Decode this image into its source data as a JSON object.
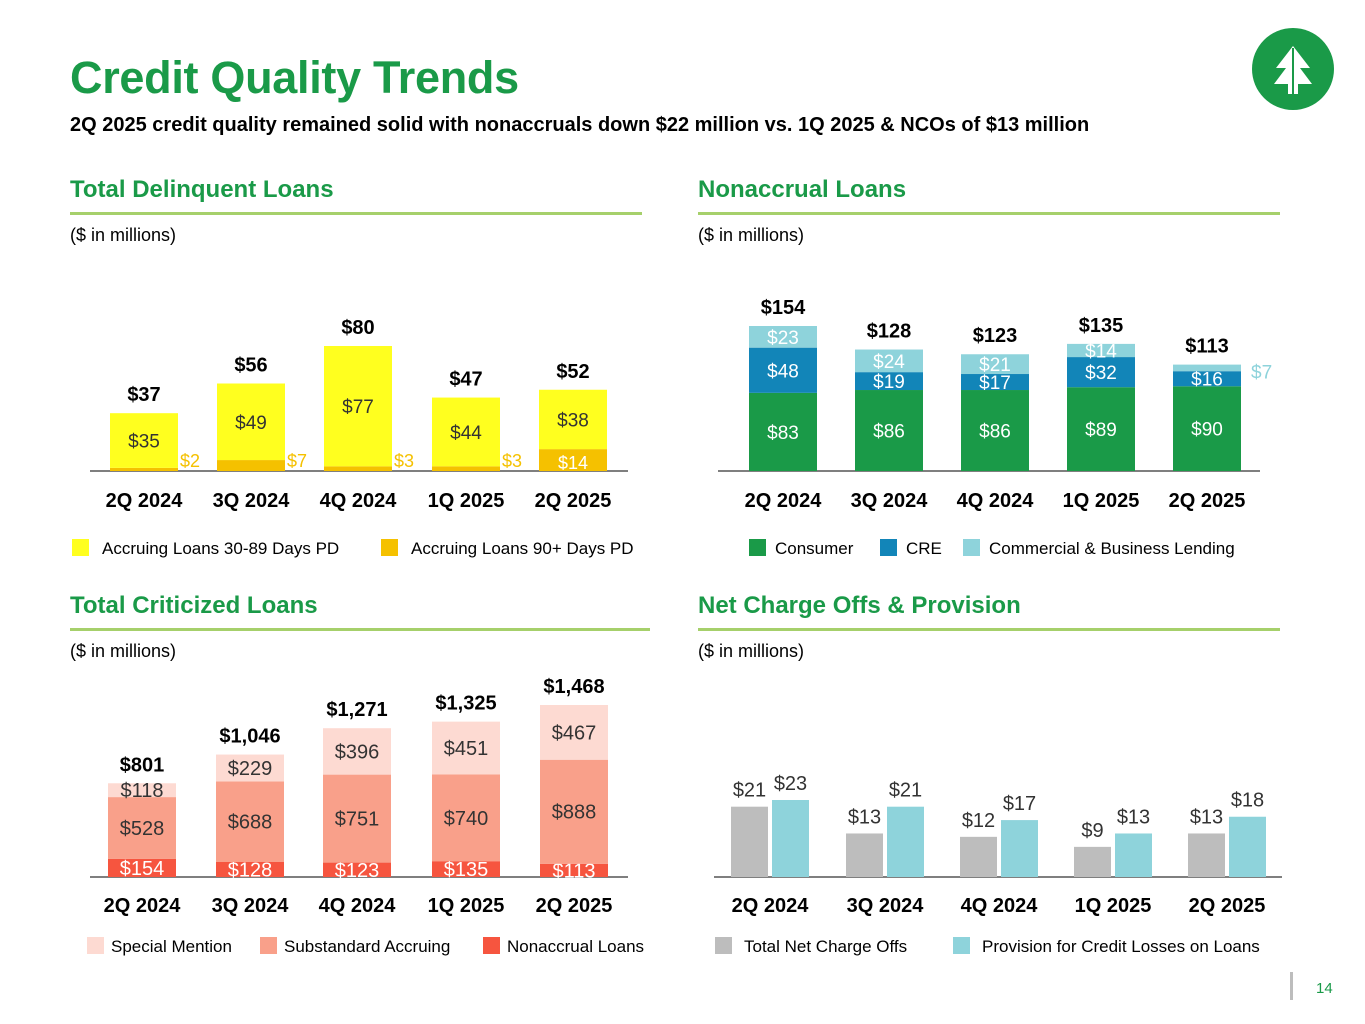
{
  "header": {
    "title": "Credit Quality Trends",
    "subtitle": "2Q 2025 credit quality remained solid with nonaccruals down $22 million vs. 1Q 2025 & NCOs of $13 million",
    "page_number": "14"
  },
  "colors": {
    "brand_green": "#1a9a48",
    "rule_green": "#a6d06b"
  },
  "panels": {
    "delinquent": {
      "title": "Total Delinquent Loans",
      "units": "($ in millions)"
    },
    "nonaccrual": {
      "title": "Nonaccrual Loans",
      "units": "($ in millions)"
    },
    "criticized": {
      "title": "Total Criticized Loans",
      "units": "($ in millions)"
    },
    "nco": {
      "title": "Net Charge Offs & Provision",
      "units": "($ in millions)"
    }
  },
  "chart_data": [
    {
      "id": "delinquent",
      "type": "bar",
      "stacked": true,
      "categories": [
        "2Q 2024",
        "3Q 2024",
        "4Q 2024",
        "1Q 2025",
        "2Q 2025"
      ],
      "series": [
        {
          "name": "Accruing Loans 90+ Days PD",
          "color": "#f5c100",
          "values": [
            2,
            7,
            3,
            3,
            14
          ],
          "labels": [
            "$2",
            "$7",
            "$3",
            "$3",
            "$14"
          ]
        },
        {
          "name": "Accruing Loans 30-89 Days PD",
          "color": "#ffff1f",
          "values": [
            35,
            49,
            77,
            44,
            38
          ],
          "labels": [
            "$35",
            "$49",
            "$77",
            "$44",
            "$38"
          ]
        }
      ],
      "totals": [
        "$37",
        "$56",
        "$80",
        "$47",
        "$52"
      ],
      "ylim": [
        0,
        85
      ]
    },
    {
      "id": "nonaccrual",
      "type": "bar",
      "stacked": true,
      "categories": [
        "2Q 2024",
        "3Q 2024",
        "4Q 2024",
        "1Q 2025",
        "2Q 2025"
      ],
      "series": [
        {
          "name": "Consumer",
          "color": "#1a9a48",
          "values": [
            83,
            86,
            86,
            89,
            90
          ],
          "labels": [
            "$83",
            "$86",
            "$86",
            "$89",
            "$90"
          ]
        },
        {
          "name": "CRE",
          "color": "#1285b8",
          "values": [
            48,
            19,
            17,
            32,
            16
          ],
          "labels": [
            "$48",
            "$19",
            "$17",
            "$32",
            "$16"
          ]
        },
        {
          "name": "Commercial & Business Lending",
          "color": "#8ed3db",
          "values": [
            23,
            24,
            21,
            14,
            7
          ],
          "labels": [
            "$23",
            "$24",
            "$21",
            "$14",
            "$7"
          ]
        }
      ],
      "totals": [
        "$154",
        "$128",
        "$123",
        "$135",
        "$113"
      ],
      "ylim": [
        0,
        165
      ]
    },
    {
      "id": "criticized",
      "type": "bar",
      "stacked": true,
      "categories": [
        "2Q 2024",
        "3Q 2024",
        "4Q 2024",
        "1Q 2025",
        "2Q 2025"
      ],
      "series": [
        {
          "name": "Nonaccrual Loans",
          "color": "#f6553f",
          "values": [
            154,
            128,
            123,
            135,
            113
          ],
          "labels": [
            "$154",
            "$128",
            "$123",
            "$135",
            "$113"
          ]
        },
        {
          "name": "Substandard Accruing",
          "color": "#f9a08a",
          "values": [
            528,
            688,
            751,
            740,
            888
          ],
          "labels": [
            "$528",
            "$688",
            "$751",
            "$740",
            "$888"
          ]
        },
        {
          "name": "Special Mention",
          "color": "#fddad2",
          "values": [
            118,
            229,
            396,
            451,
            467
          ],
          "labels": [
            "$118",
            "$229",
            "$396",
            "$451",
            "$467"
          ]
        }
      ],
      "totals": [
        "$801",
        "$1,046",
        "$1,271",
        "$1,325",
        "$1,468"
      ],
      "ylim": [
        0,
        1600
      ]
    },
    {
      "id": "nco",
      "type": "bar",
      "stacked": false,
      "categories": [
        "2Q 2024",
        "3Q 2024",
        "4Q 2024",
        "1Q 2025",
        "2Q 2025"
      ],
      "series": [
        {
          "name": "Total Net Charge Offs",
          "color": "#bdbdbd",
          "values": [
            21,
            13,
            12,
            9,
            13
          ],
          "labels": [
            "$21",
            "$13",
            "$12",
            "$9",
            "$13"
          ]
        },
        {
          "name": "Provision for Credit Losses on Loans",
          "color": "#8ed3db",
          "values": [
            23,
            21,
            17,
            13,
            18
          ],
          "labels": [
            "$23",
            "$21",
            "$17",
            "$13",
            "$18"
          ]
        }
      ],
      "ylim": [
        0,
        30
      ]
    }
  ]
}
